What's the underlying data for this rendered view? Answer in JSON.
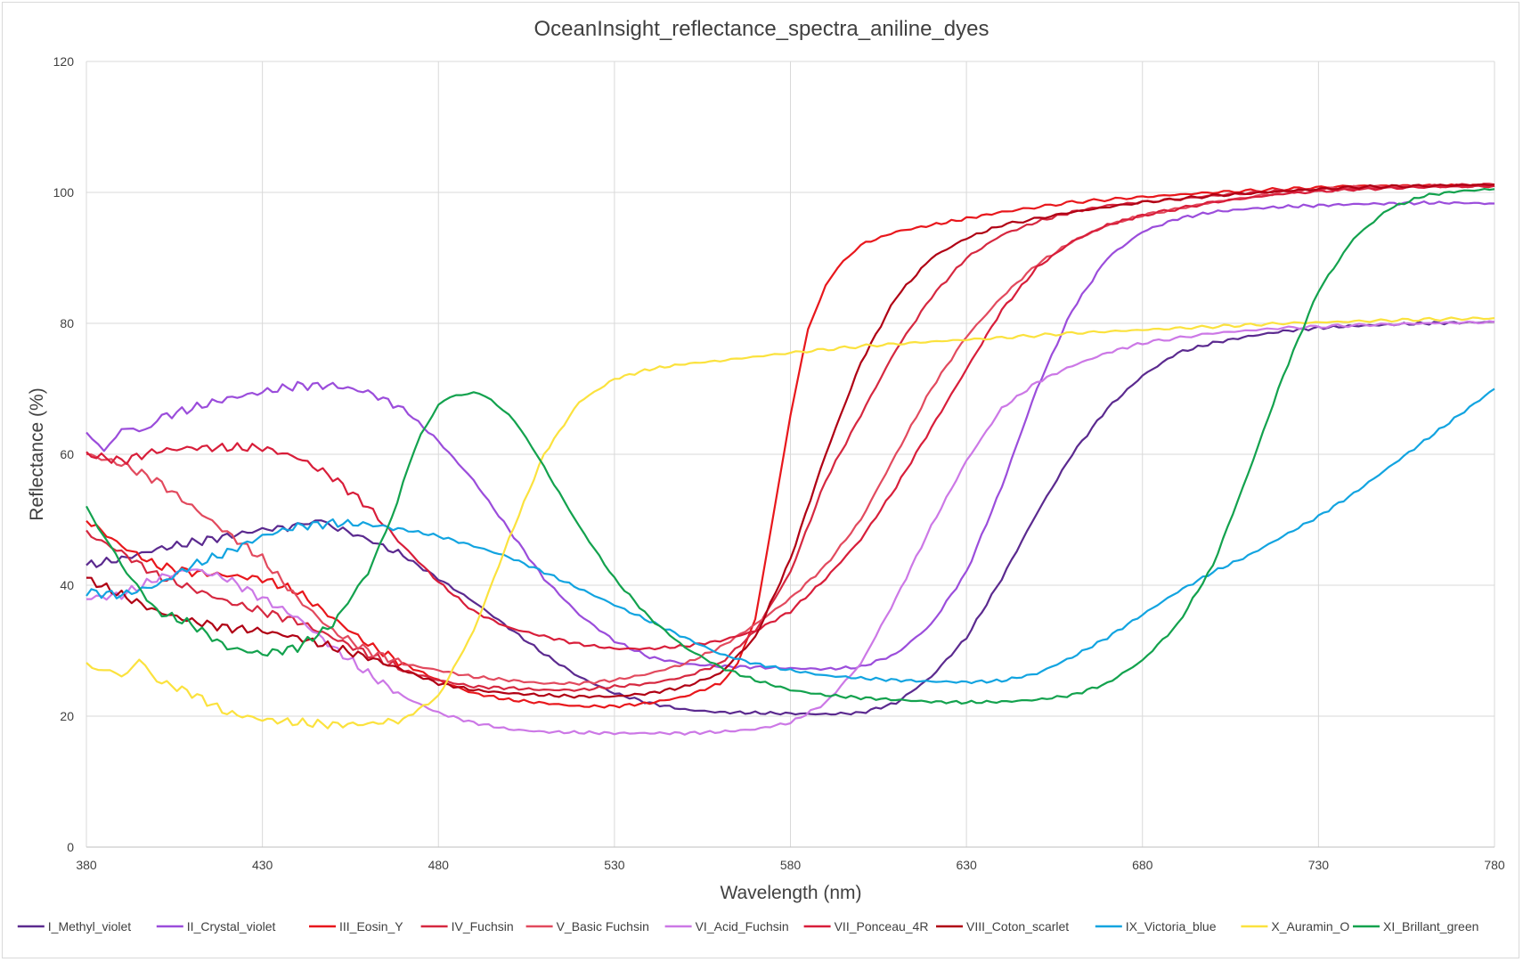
{
  "chart_data": {
    "type": "line",
    "title": "OceanInsight_reflectance_spectra_aniline_dyes",
    "xlabel": "Wavelength (nm)",
    "ylabel": "Reflectance (%)",
    "xlim": [
      380,
      780
    ],
    "ylim": [
      0,
      120
    ],
    "xticks": [
      380,
      430,
      480,
      530,
      580,
      630,
      680,
      730,
      780
    ],
    "yticks": [
      0,
      20,
      40,
      60,
      80,
      100,
      120
    ],
    "grid": true,
    "legend_position": "bottom",
    "series": [
      {
        "name": "I_Methyl_violet",
        "color": "#5b2a8f",
        "x": [
          380,
          390,
          400,
          410,
          420,
          430,
          440,
          445,
          450,
          460,
          470,
          480,
          490,
          500,
          510,
          520,
          530,
          540,
          550,
          560,
          570,
          580,
          590,
          600,
          610,
          620,
          630,
          640,
          650,
          660,
          670,
          680,
          690,
          700,
          710,
          720,
          730,
          740,
          750,
          760,
          770,
          780
        ],
        "y": [
          43,
          44,
          45.5,
          46.5,
          47.5,
          48.5,
          49,
          50,
          49,
          47,
          44.5,
          41,
          37.5,
          33.5,
          29.5,
          26,
          23.5,
          22,
          21,
          20.6,
          20.5,
          20.4,
          20.3,
          20.5,
          22,
          26,
          32,
          41,
          51,
          60,
          67,
          72,
          75.5,
          77,
          78,
          78.8,
          79.3,
          79.6,
          79.8,
          80,
          80.1,
          80.2
        ]
      },
      {
        "name": "II_Crystal_violet",
        "color": "#9b4ddb",
        "x": [
          380,
          385,
          390,
          395,
          400,
          410,
          420,
          430,
          440,
          450,
          460,
          470,
          480,
          490,
          500,
          510,
          520,
          530,
          540,
          550,
          560,
          570,
          580,
          590,
          600,
          610,
          620,
          630,
          640,
          650,
          660,
          670,
          680,
          690,
          700,
          710,
          720,
          730,
          740,
          750,
          760,
          770,
          780
        ],
        "y": [
          64,
          60,
          64,
          63,
          65.5,
          67,
          68.5,
          69.5,
          70.5,
          70.5,
          69.5,
          67,
          62,
          56,
          48.5,
          41,
          35.5,
          31.5,
          29,
          28,
          27.6,
          27.5,
          27.3,
          27.2,
          27.5,
          29.5,
          34,
          42,
          55,
          70,
          82,
          90,
          94,
          96,
          97,
          97.5,
          97.8,
          98,
          98.2,
          98.3,
          98.4,
          98.4,
          98.3
        ]
      },
      {
        "name": "III_Eosin_Y",
        "color": "#e8171c",
        "x": [
          380,
          390,
          400,
          410,
          420,
          430,
          440,
          450,
          460,
          470,
          480,
          490,
          500,
          510,
          520,
          530,
          540,
          550,
          560,
          565,
          570,
          575,
          580,
          585,
          590,
          595,
          600,
          610,
          620,
          630,
          640,
          660,
          680,
          700,
          720,
          740,
          760,
          780
        ],
        "y": [
          50,
          46,
          43,
          42,
          41.5,
          41,
          39,
          35,
          31,
          28,
          25.5,
          23.5,
          22.5,
          22,
          21.5,
          21.5,
          22,
          23,
          25,
          28,
          35,
          50,
          66,
          79,
          86,
          89.5,
          92,
          94,
          95,
          96,
          97,
          98.5,
          99.3,
          100,
          100.5,
          101,
          101,
          101
        ]
      },
      {
        "name": "IV_Fuchsin",
        "color": "#d62840",
        "x": [
          380,
          390,
          400,
          410,
          420,
          430,
          440,
          450,
          460,
          470,
          480,
          490,
          500,
          510,
          520,
          530,
          540,
          550,
          560,
          570,
          580,
          590,
          600,
          610,
          620,
          630,
          640,
          650,
          660,
          670,
          680,
          700,
          720,
          740,
          760,
          780
        ],
        "y": [
          48,
          45,
          41.5,
          39.5,
          37.5,
          36,
          34.5,
          32,
          29.5,
          27,
          25.5,
          24.5,
          24.3,
          24,
          24,
          24.5,
          25,
          26,
          28,
          33,
          42,
          56,
          66,
          76,
          84,
          90,
          93.5,
          95.5,
          97,
          98,
          98.5,
          99.5,
          100.3,
          100.5,
          101,
          101
        ]
      },
      {
        "name": "V_Basic Fuchsin",
        "color": "#e24a5e",
        "x": [
          380,
          390,
          400,
          410,
          420,
          430,
          440,
          450,
          460,
          470,
          480,
          490,
          500,
          510,
          520,
          530,
          540,
          550,
          560,
          570,
          580,
          590,
          600,
          610,
          620,
          630,
          640,
          650,
          660,
          670,
          680,
          700,
          720,
          740,
          760,
          780
        ],
        "y": [
          60,
          58.5,
          56,
          52,
          48,
          44,
          38,
          33,
          30,
          28,
          27,
          26,
          25.5,
          25,
          25,
          25.5,
          26.5,
          28,
          30.5,
          34,
          38,
          43,
          50,
          60,
          70,
          78,
          84,
          89,
          92.5,
          95,
          96.5,
          98.5,
          100,
          100.8,
          101,
          101.2
        ]
      },
      {
        "name": "VI_Acid_Fuchsin",
        "color": "#cc78e6",
        "x": [
          380,
          390,
          400,
          410,
          420,
          430,
          440,
          450,
          460,
          470,
          480,
          490,
          500,
          510,
          520,
          530,
          540,
          550,
          560,
          570,
          580,
          590,
          600,
          610,
          620,
          630,
          640,
          650,
          660,
          670,
          680,
          700,
          720,
          740,
          760,
          780
        ],
        "y": [
          38,
          38.5,
          41,
          42.5,
          41,
          38,
          35,
          30.5,
          26.5,
          23,
          20.5,
          19,
          18,
          17.6,
          17.5,
          17.4,
          17.4,
          17.4,
          17.6,
          18,
          19,
          22,
          28,
          38,
          49,
          59,
          67,
          71,
          73.5,
          75.5,
          77,
          78.5,
          79.3,
          79.7,
          80,
          80.2
        ]
      },
      {
        "name": "VII_Ponceau_4R",
        "color": "#d81e3a",
        "x": [
          380,
          390,
          400,
          410,
          420,
          430,
          440,
          450,
          460,
          470,
          480,
          490,
          500,
          510,
          520,
          530,
          540,
          550,
          560,
          570,
          580,
          590,
          600,
          610,
          620,
          630,
          640,
          650,
          660,
          670,
          680,
          700,
          720,
          740,
          760,
          780
        ],
        "y": [
          60,
          59,
          60.5,
          61,
          61,
          61,
          59.5,
          56.5,
          52,
          46,
          40.5,
          36,
          33.5,
          32.2,
          31,
          30.3,
          30.3,
          30.7,
          31.5,
          33,
          36,
          41,
          47,
          55,
          64,
          73,
          82,
          88.5,
          92.5,
          95,
          96.5,
          98.5,
          99.8,
          100.5,
          100.8,
          101
        ]
      },
      {
        "name": "VIII_Coton_scarlet",
        "color": "#b00014",
        "x": [
          380,
          390,
          400,
          410,
          420,
          430,
          440,
          450,
          460,
          470,
          480,
          490,
          500,
          510,
          520,
          530,
          540,
          550,
          560,
          570,
          580,
          590,
          600,
          610,
          620,
          630,
          640,
          660,
          680,
          700,
          720,
          740,
          760,
          780
        ],
        "y": [
          41,
          38.5,
          36,
          34.5,
          33.5,
          33,
          32,
          30.5,
          29,
          27,
          25,
          24,
          23.5,
          23.2,
          23,
          23,
          23.5,
          24.5,
          26.5,
          32,
          44,
          60,
          74,
          84,
          90,
          93,
          95,
          97,
          98.5,
          99.5,
          100.2,
          100.8,
          101,
          101.2
        ]
      },
      {
        "name": "IX_Victoria_blue",
        "color": "#12a4e0",
        "x": [
          380,
          390,
          400,
          410,
          420,
          430,
          440,
          450,
          460,
          470,
          480,
          490,
          500,
          510,
          520,
          530,
          540,
          550,
          560,
          570,
          580,
          590,
          600,
          610,
          620,
          630,
          640,
          650,
          660,
          670,
          680,
          690,
          700,
          710,
          720,
          730,
          740,
          750,
          760,
          770,
          780
        ],
        "y": [
          39,
          38.5,
          40,
          43,
          45,
          47.5,
          49,
          49.5,
          49.3,
          48.5,
          47.5,
          46,
          44.3,
          42,
          39.5,
          37,
          34.5,
          32,
          29.5,
          28,
          27,
          26.2,
          25.8,
          25.5,
          25.3,
          25.2,
          25.4,
          26.5,
          29,
          32,
          35.5,
          39,
          42,
          44.5,
          47.5,
          50.5,
          54,
          58,
          62,
          66,
          70
        ]
      },
      {
        "name": "X_Auramin_O",
        "color": "#fbe23e",
        "x": [
          380,
          385,
          390,
          395,
          400,
          410,
          420,
          430,
          440,
          450,
          460,
          470,
          480,
          490,
          500,
          510,
          520,
          530,
          540,
          550,
          560,
          580,
          600,
          620,
          640,
          660,
          680,
          700,
          720,
          740,
          760,
          780
        ],
        "y": [
          28.5,
          27,
          26.5,
          28,
          25.5,
          23.5,
          20.5,
          19.5,
          19,
          18.7,
          18.8,
          19.5,
          23,
          33,
          47,
          60,
          68,
          71.5,
          73,
          73.8,
          74.3,
          75.5,
          76.5,
          77.2,
          77.8,
          78.5,
          79,
          79.5,
          80,
          80.3,
          80.6,
          80.8
        ]
      },
      {
        "name": "XI_Brillant_green",
        "color": "#13a24e",
        "x": [
          380,
          385,
          390,
          400,
          410,
          420,
          430,
          440,
          450,
          460,
          465,
          470,
          475,
          480,
          485,
          490,
          495,
          500,
          505,
          510,
          520,
          530,
          540,
          550,
          560,
          570,
          580,
          590,
          600,
          610,
          620,
          630,
          640,
          650,
          660,
          670,
          680,
          690,
          700,
          710,
          720,
          730,
          740,
          750,
          760,
          770,
          780
        ],
        "y": [
          51.5,
          48,
          43,
          36,
          34,
          30.5,
          29.5,
          30.5,
          34,
          42,
          48,
          56,
          63,
          67.5,
          69,
          69.5,
          68.5,
          66,
          62.5,
          58,
          49,
          41,
          35,
          30.5,
          27.5,
          25.5,
          24,
          23.2,
          22.8,
          22.5,
          22.2,
          22.1,
          22.2,
          22.5,
          23.2,
          25,
          28.5,
          34,
          43,
          57,
          72,
          85,
          93,
          97.5,
          99.5,
          100.2,
          100.5
        ]
      }
    ]
  }
}
